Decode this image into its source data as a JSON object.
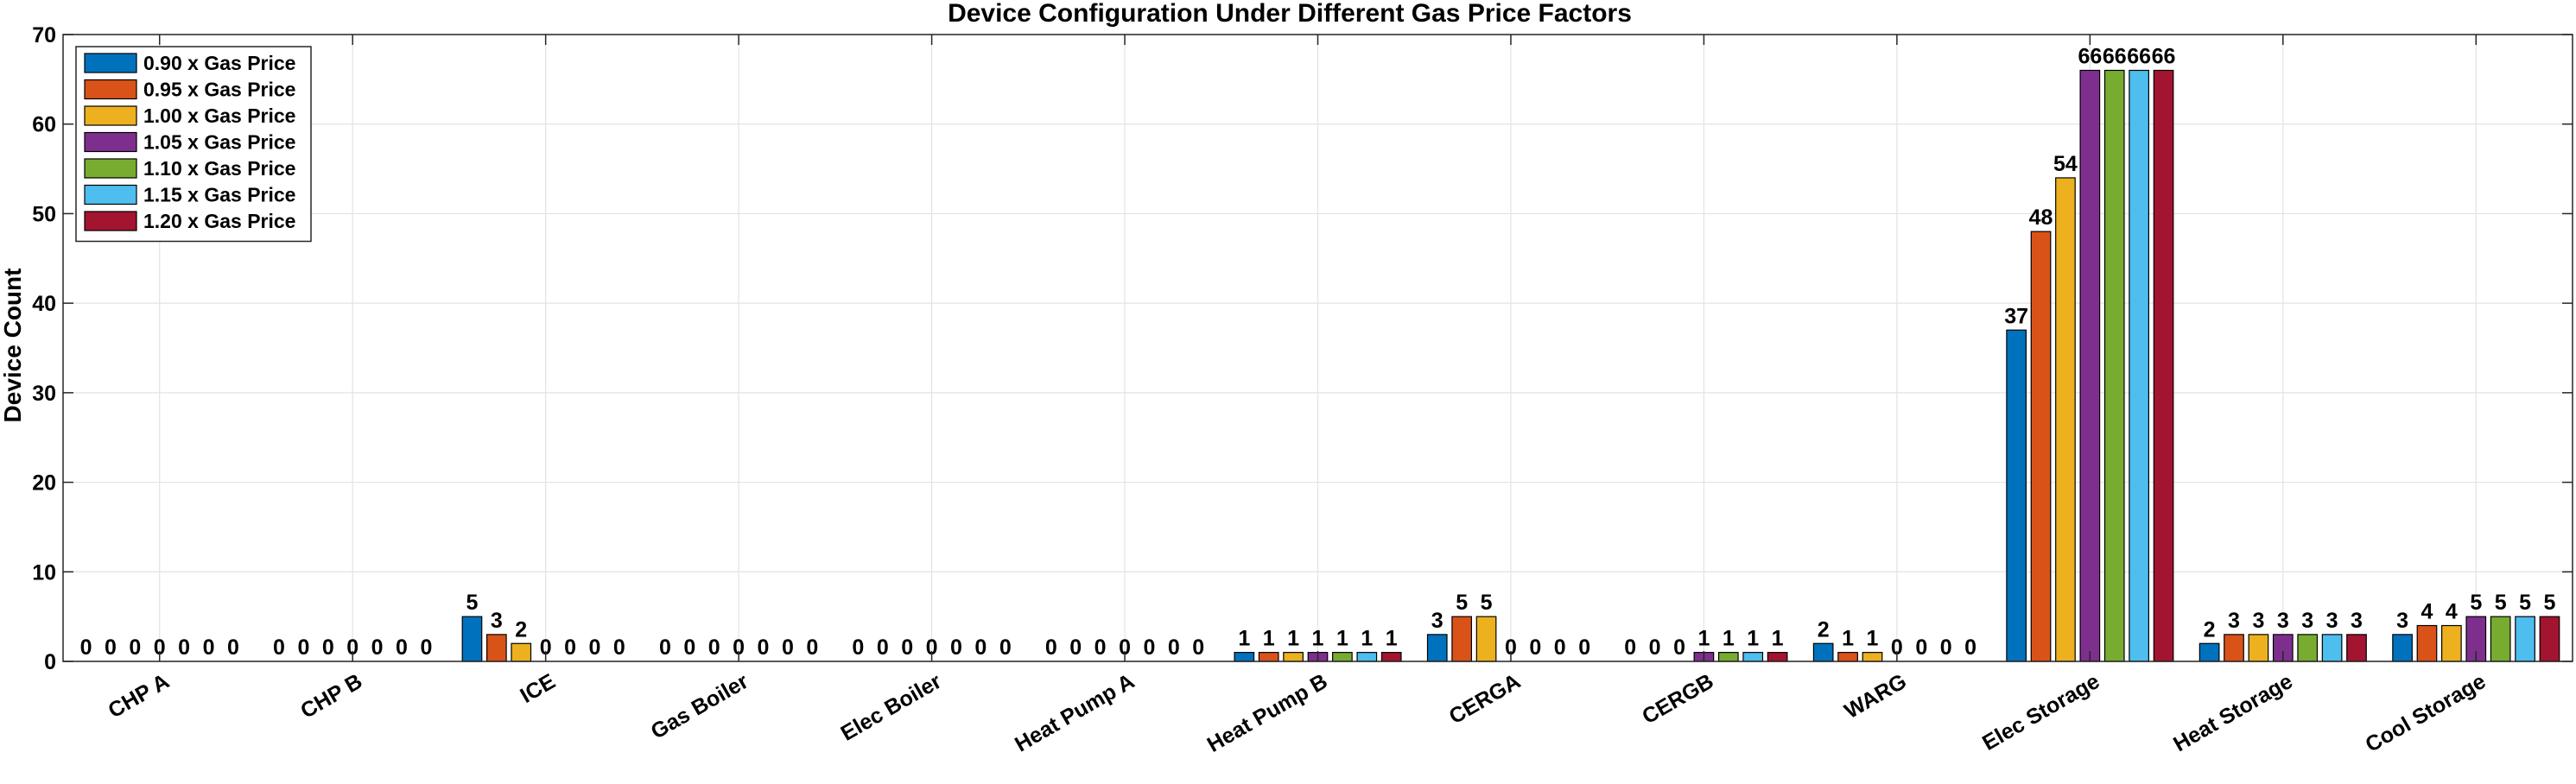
{
  "chart_data": {
    "type": "bar",
    "title": "Device Configuration Under Different Gas Price Factors",
    "xlabel": "",
    "ylabel": "Device Count",
    "ylim": [
      0,
      70
    ],
    "yticks": [
      0,
      10,
      20,
      30,
      40,
      50,
      60,
      70
    ],
    "grid": true,
    "legend_position": "top-left",
    "categories": [
      "CHP A",
      "CHP B",
      "ICE",
      "Gas Boiler",
      "Elec Boiler",
      "Heat Pump A",
      "Heat Pump B",
      "CERGA",
      "CERGB",
      "WARG",
      "Elec Storage",
      "Heat Storage",
      "Cool Storage"
    ],
    "series": [
      {
        "name": "0.90 x Gas Price",
        "color": "#0072BD",
        "values": [
          0,
          0,
          5,
          0,
          0,
          0,
          1,
          3,
          0,
          2,
          37,
          2,
          3
        ]
      },
      {
        "name": "0.95 x Gas Price",
        "color": "#D95319",
        "values": [
          0,
          0,
          3,
          0,
          0,
          0,
          1,
          5,
          0,
          1,
          48,
          3,
          4
        ]
      },
      {
        "name": "1.00 x Gas Price",
        "color": "#EDB120",
        "values": [
          0,
          0,
          2,
          0,
          0,
          0,
          1,
          5,
          0,
          1,
          54,
          3,
          4
        ]
      },
      {
        "name": "1.05 x Gas Price",
        "color": "#7E2F8E",
        "values": [
          0,
          0,
          0,
          0,
          0,
          0,
          1,
          0,
          1,
          0,
          66,
          3,
          5
        ]
      },
      {
        "name": "1.10 x Gas Price",
        "color": "#77AC30",
        "values": [
          0,
          0,
          0,
          0,
          0,
          0,
          1,
          0,
          1,
          0,
          66,
          3,
          5
        ]
      },
      {
        "name": "1.15 x Gas Price",
        "color": "#4DBEEE",
        "values": [
          0,
          0,
          0,
          0,
          0,
          0,
          1,
          0,
          1,
          0,
          66,
          3,
          5
        ]
      },
      {
        "name": "1.20 x Gas Price",
        "color": "#A2142F",
        "values": [
          0,
          0,
          0,
          0,
          0,
          0,
          1,
          0,
          1,
          0,
          66,
          3,
          5
        ]
      }
    ]
  }
}
